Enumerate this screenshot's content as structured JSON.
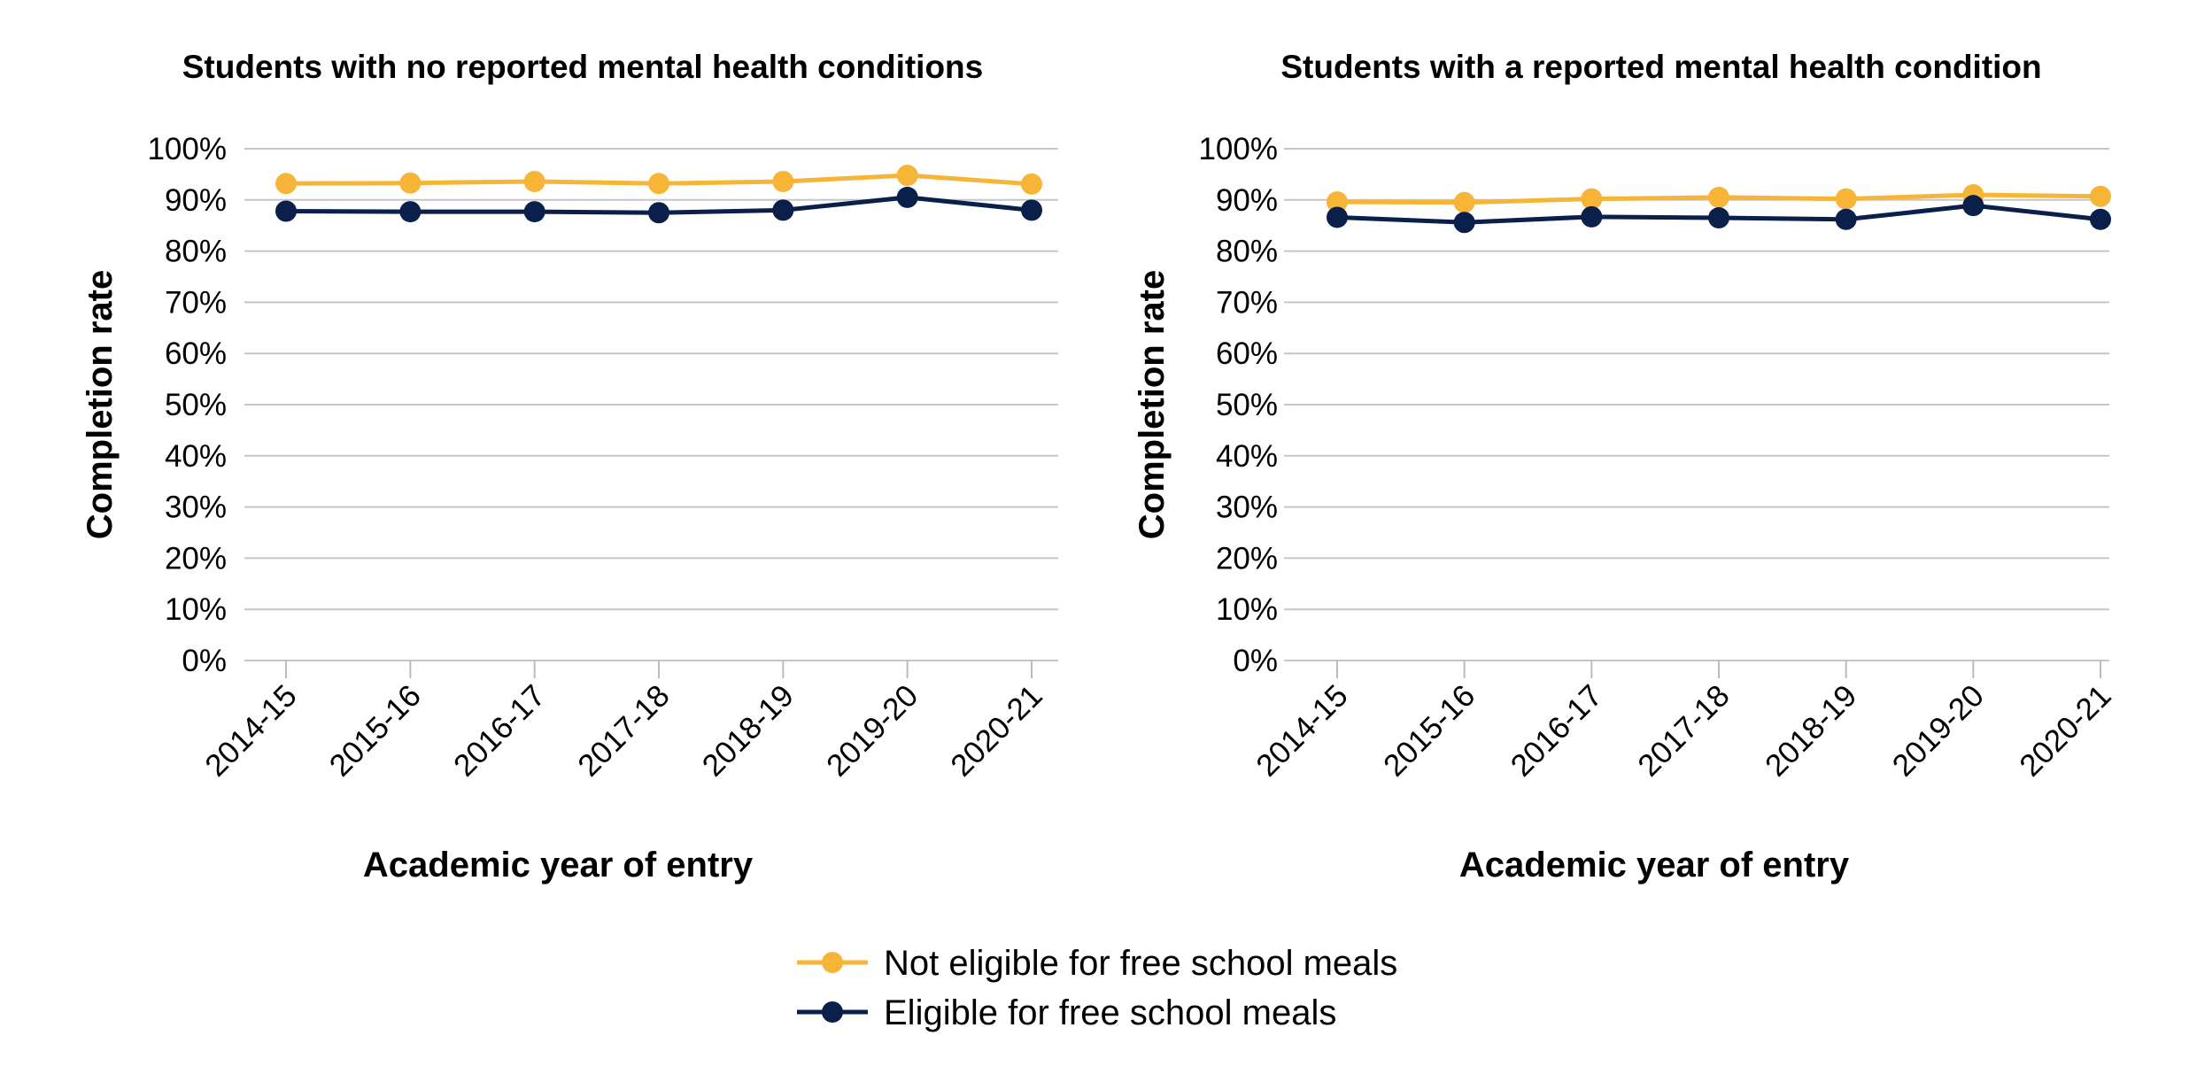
{
  "chart_data": [
    {
      "type": "line",
      "title": "Students with no reported mental health conditions",
      "xlabel": "Academic year of entry",
      "ylabel": "Completion rate",
      "categories": [
        "2014-15",
        "2015-16",
        "2016-17",
        "2017-18",
        "2018-19",
        "2019-20",
        "2020-21"
      ],
      "series": [
        {
          "name": "Not eligible for free school meals",
          "color": "#f7b538",
          "values": [
            93.2,
            93.3,
            93.6,
            93.2,
            93.6,
            94.8,
            93.1
          ]
        },
        {
          "name": "Eligible for free school meals",
          "color": "#0b1f4b",
          "values": [
            87.8,
            87.7,
            87.7,
            87.5,
            88.0,
            90.5,
            88.0
          ]
        }
      ],
      "yticks": [
        "0%",
        "10%",
        "20%",
        "30%",
        "40%",
        "50%",
        "60%",
        "70%",
        "80%",
        "90%",
        "100%"
      ],
      "ylim": [
        0,
        100
      ],
      "grid": true
    },
    {
      "type": "line",
      "title": "Students with a reported mental health condition",
      "xlabel": "Academic year of entry",
      "ylabel": "Completion rate",
      "categories": [
        "2014-15",
        "2015-16",
        "2016-17",
        "2017-18",
        "2018-19",
        "2019-20",
        "2020-21"
      ],
      "series": [
        {
          "name": "Not eligible for free school meals",
          "color": "#f7b538",
          "values": [
            89.6,
            89.5,
            90.2,
            90.5,
            90.2,
            91.0,
            90.7
          ]
        },
        {
          "name": "Eligible for free school meals",
          "color": "#0b1f4b",
          "values": [
            86.6,
            85.6,
            86.7,
            86.5,
            86.2,
            88.9,
            86.2
          ]
        }
      ],
      "yticks": [
        "0%",
        "10%",
        "20%",
        "30%",
        "40%",
        "50%",
        "60%",
        "70%",
        "80%",
        "90%",
        "100%"
      ],
      "ylim": [
        0,
        100
      ],
      "grid": true
    }
  ],
  "legend": {
    "position": "bottom",
    "items": [
      {
        "label": "Not eligible for free school meals",
        "color": "#f7b538"
      },
      {
        "label": "Eligible for free school meals",
        "color": "#0b1f4b"
      }
    ]
  }
}
